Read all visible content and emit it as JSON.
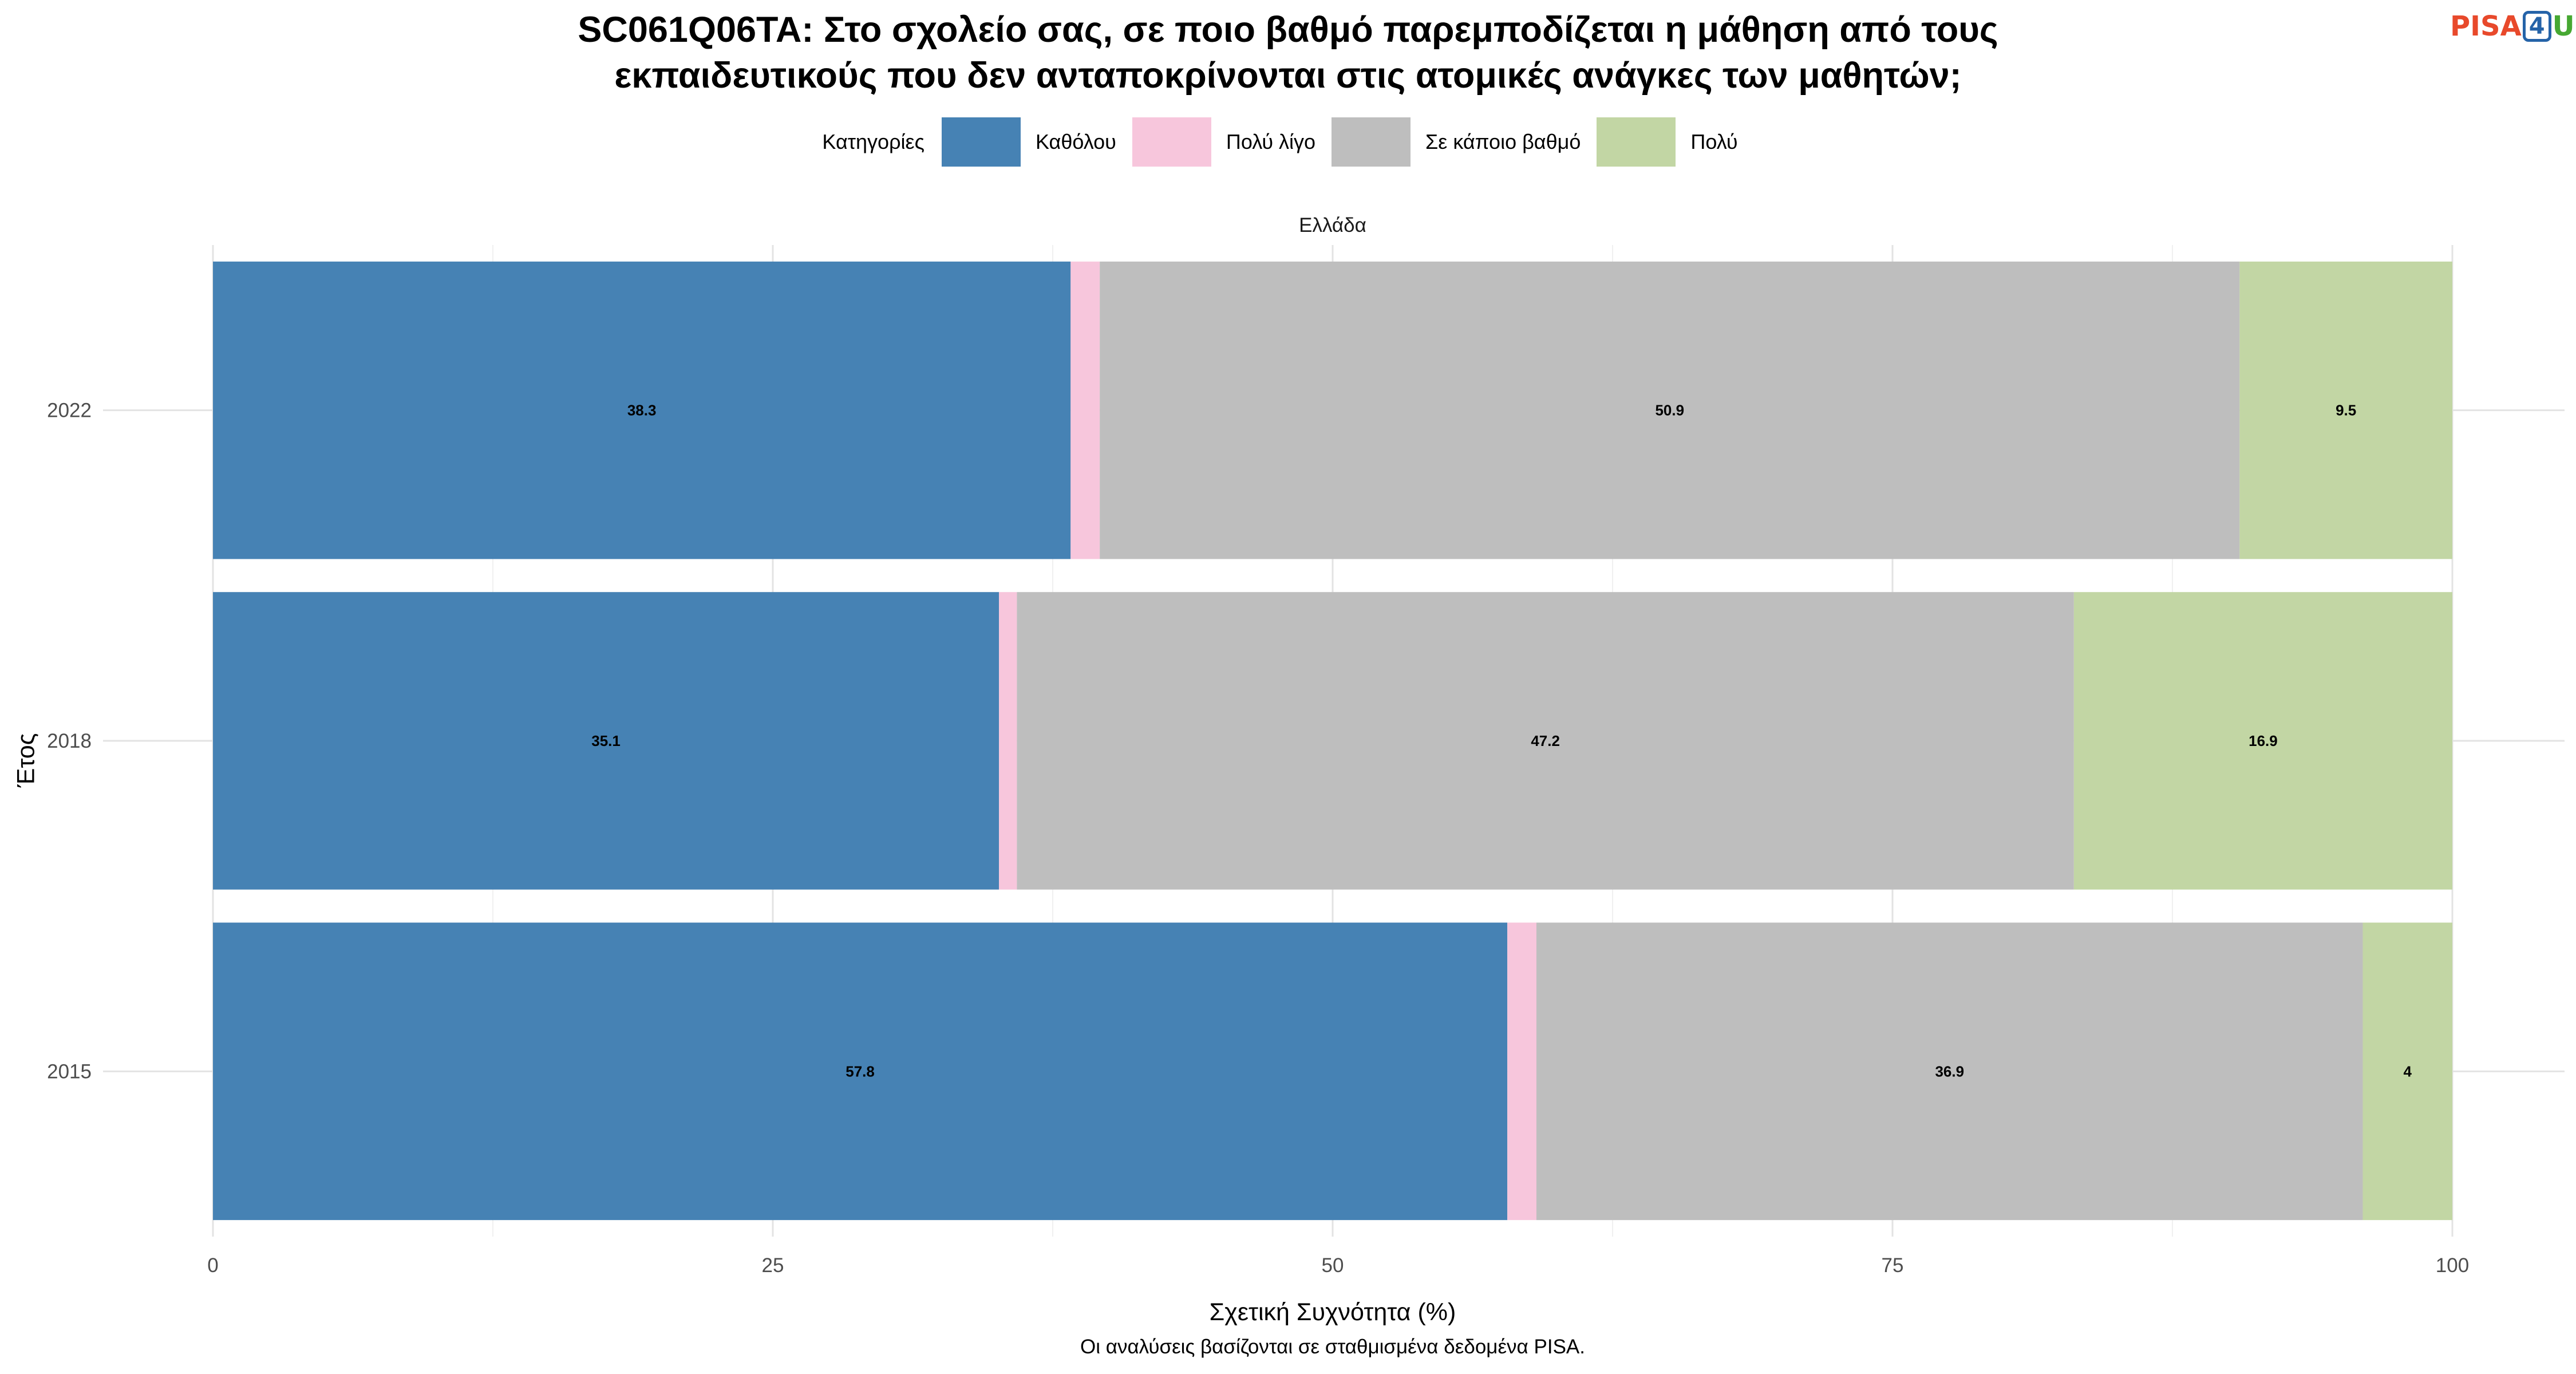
{
  "title_lines": [
    "SC061Q06TA: Στο σχολείο σας, σε ποιο βαθμό παρεμποδίζεται η μάθηση από τους",
    "εκπαιδευτικούς που δεν ανταποκρίνονται στις ατομικές ανάγκες των μαθητών;"
  ],
  "logo": {
    "part1": "PISA",
    "part2": "4",
    "part3": "U"
  },
  "legend": {
    "title": "Κατηγορίες",
    "items": [
      {
        "label": "Καθόλου",
        "color": "#4682b4"
      },
      {
        "label": "Πολύ λίγο",
        "color": "#f7c6dc"
      },
      {
        "label": "Σε κάποιο βαθμό",
        "color": "#bebebe"
      },
      {
        "label": "Πολύ",
        "color": "#c2d6a4"
      }
    ]
  },
  "facet_label": "Ελλάδα",
  "caption": "Οι αναλύσεις βασίζονται σε σταθμισμένα δεδομένα PISA.",
  "chart_data": {
    "type": "bar",
    "orientation": "horizontal",
    "stacked": true,
    "xlabel": "Σχετική Συχνότητα (%)",
    "ylabel": "Έτος",
    "xlim": [
      0,
      100
    ],
    "xticks": [
      0,
      25,
      50,
      75,
      100
    ],
    "grid": true,
    "legend_position": "top",
    "categories": [
      "2022",
      "2018",
      "2015"
    ],
    "series": [
      {
        "name": "Καθόλου",
        "color": "#4682b4",
        "values": [
          38.3,
          35.1,
          57.8
        ],
        "labels": [
          "38.3",
          "35.1",
          "57.8"
        ]
      },
      {
        "name": "Πολύ λίγο",
        "color": "#f7c6dc",
        "values": [
          1.3,
          0.8,
          1.3
        ],
        "labels": [
          "",
          "",
          ""
        ]
      },
      {
        "name": "Σε κάποιο βαθμό",
        "color": "#bebebe",
        "values": [
          50.9,
          47.2,
          36.9
        ],
        "labels": [
          "50.9",
          "47.2",
          "36.9"
        ]
      },
      {
        "name": "Πολύ",
        "color": "#c2d6a4",
        "values": [
          9.5,
          16.9,
          4.0
        ],
        "labels": [
          "9.5",
          "16.9",
          "4"
        ]
      }
    ]
  }
}
